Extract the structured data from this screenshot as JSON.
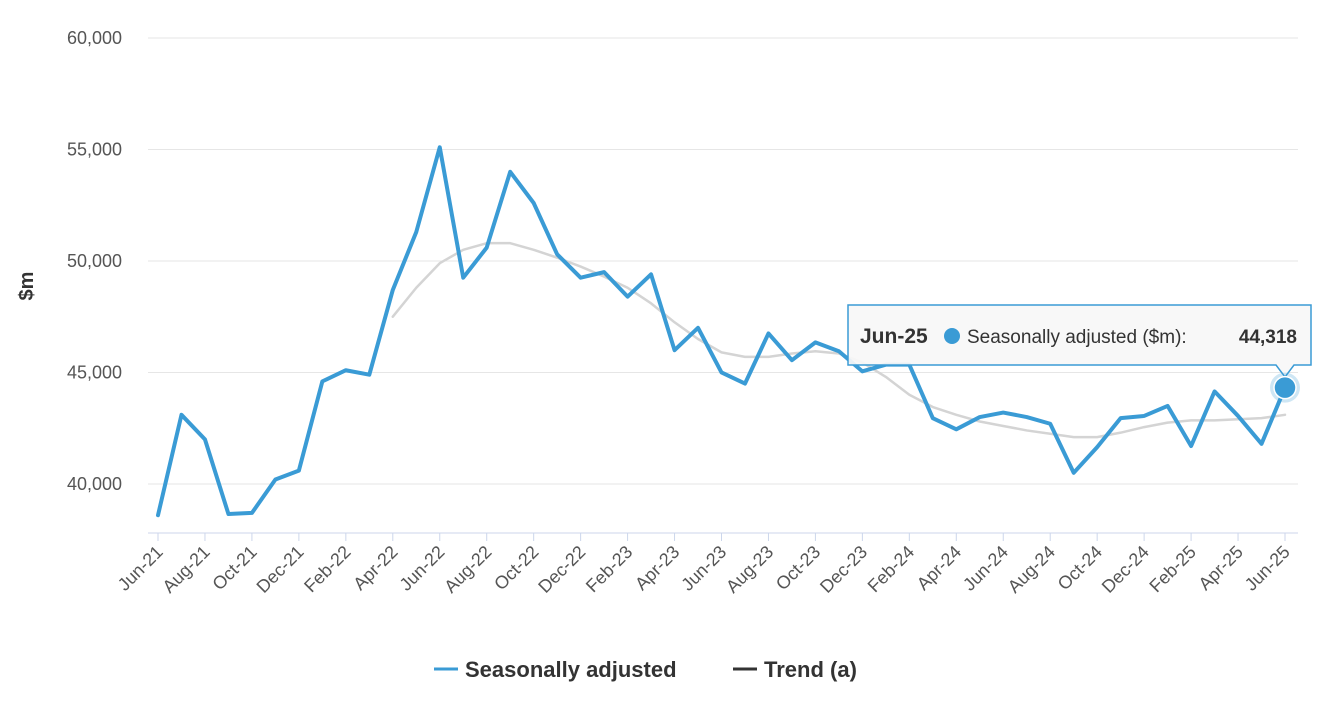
{
  "chart_data": {
    "type": "line",
    "title": "",
    "xlabel": "",
    "ylabel": "$m",
    "ylim": [
      37800,
      60000
    ],
    "yticks": [
      40000,
      45000,
      50000,
      55000,
      60000
    ],
    "ytick_labels": [
      "40,000",
      "45,000",
      "50,000",
      "55,000",
      "60,000"
    ],
    "grid": "horizontal",
    "legend_position": "bottom-center",
    "x": [
      "Jun-21",
      "Jul-21",
      "Aug-21",
      "Sep-21",
      "Oct-21",
      "Nov-21",
      "Dec-21",
      "Jan-22",
      "Feb-22",
      "Mar-22",
      "Apr-22",
      "May-22",
      "Jun-22",
      "Jul-22",
      "Aug-22",
      "Sep-22",
      "Oct-22",
      "Nov-22",
      "Dec-22",
      "Jan-23",
      "Feb-23",
      "Mar-23",
      "Apr-23",
      "May-23",
      "Jun-23",
      "Jul-23",
      "Aug-23",
      "Sep-23",
      "Oct-23",
      "Nov-23",
      "Dec-23",
      "Jan-24",
      "Feb-24",
      "Mar-24",
      "Apr-24",
      "May-24",
      "Jun-24",
      "Jul-24",
      "Aug-24",
      "Sep-24",
      "Oct-24",
      "Nov-24",
      "Dec-24",
      "Jan-25",
      "Feb-25",
      "Mar-25",
      "Apr-25",
      "May-25",
      "Jun-25"
    ],
    "xtick_labels": [
      "Jun-21",
      "Aug-21",
      "Oct-21",
      "Dec-21",
      "Feb-22",
      "Apr-22",
      "Jun-22",
      "Aug-22",
      "Oct-22",
      "Dec-22",
      "Feb-23",
      "Apr-23",
      "Jun-23",
      "Aug-23",
      "Oct-23",
      "Dec-23",
      "Feb-24",
      "Apr-24",
      "Jun-24",
      "Aug-24",
      "Oct-24",
      "Dec-24",
      "Feb-25",
      "Apr-25",
      "Jun-25"
    ],
    "series": [
      {
        "name": "Seasonally adjusted",
        "color": "#3a9bd5",
        "values": [
          38600,
          43100,
          42000,
          38650,
          38700,
          40200,
          40600,
          44600,
          45100,
          44900,
          48700,
          51300,
          55100,
          49250,
          50600,
          54000,
          52600,
          50300,
          49250,
          49500,
          48400,
          49400,
          46000,
          47000,
          45000,
          44500,
          46750,
          45550,
          46350,
          45950,
          45050,
          45350,
          45350,
          42950,
          42450,
          43000,
          43200,
          43000,
          42700,
          40500,
          41650,
          42950,
          43050,
          43500,
          41700,
          44150,
          43050,
          41800,
          44318
        ]
      },
      {
        "name": "Trend (a)",
        "color": "#d4d4d4",
        "values": [
          null,
          null,
          null,
          null,
          null,
          null,
          null,
          null,
          null,
          null,
          47500,
          48800,
          49900,
          50500,
          50800,
          50800,
          50500,
          50150,
          49750,
          49300,
          48800,
          48100,
          47250,
          46500,
          45900,
          45700,
          45700,
          45850,
          45950,
          45850,
          45450,
          44800,
          44000,
          43450,
          43100,
          42800,
          42600,
          42400,
          42250,
          42100,
          42100,
          42300,
          42550,
          42750,
          42850,
          42850,
          42900,
          42950,
          43100
        ]
      }
    ],
    "tooltip": {
      "period": "Jun-25",
      "series_label": "Seasonally adjusted ($m):",
      "value_label": "44,318",
      "index": 48
    }
  }
}
